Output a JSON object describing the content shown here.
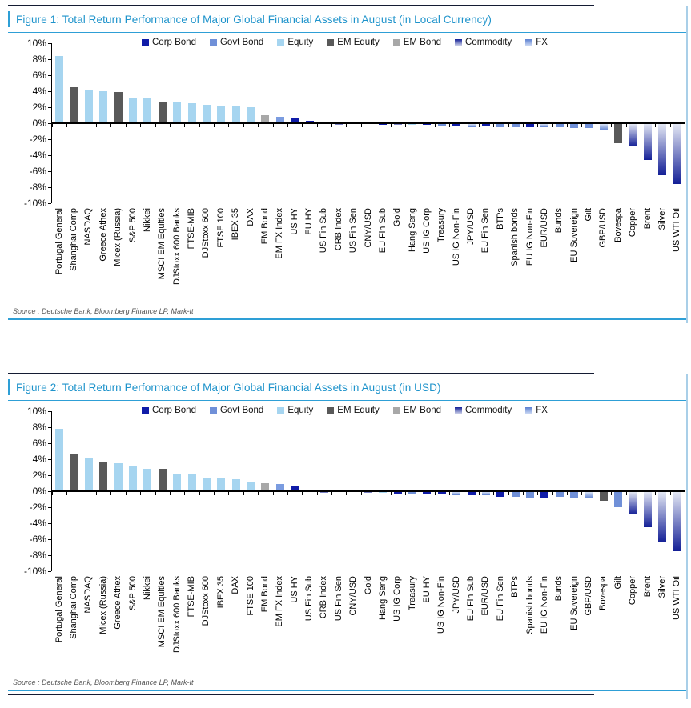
{
  "colors": {
    "title_blue": "#1e93cb",
    "rule_blue": "#2e9fd6",
    "right_border_blue": "#a9cfe8",
    "top_rule_navy": "#141b33",
    "corp_bond": "#101ca8",
    "govt_bond": "#7090d8",
    "equity": "#a6d5f0",
    "em_equity": "#595959",
    "em_bond": "#a8a8a8",
    "commodity_dark": "#131f96",
    "commodity_light": "#e4e8f4",
    "fx_dark": "#5b7fd0",
    "fx_light": "#d9e4f8",
    "fx_positive": "#7b9ce0",
    "axis_black": "#000000",
    "source_gray": "#555555"
  },
  "legend": [
    {
      "label": "Corp Bond",
      "class": "corp_bond"
    },
    {
      "label": "Govt Bond",
      "class": "govt_bond"
    },
    {
      "label": "Equity",
      "class": "equity"
    },
    {
      "label": "EM Equity",
      "class": "em_equity"
    },
    {
      "label": "EM Bond",
      "class": "em_bond"
    },
    {
      "label": "Commodity",
      "class": "commodity"
    },
    {
      "label": "FX",
      "class": "fx"
    }
  ],
  "chart_data": [
    {
      "type": "bar",
      "title": "Figure 1: Total Return Performance of Major Global Financial Assets in August (in Local Currency)",
      "source": "Source : Deutsche Bank, Bloomberg Finance LP, Mark-It",
      "xlabel": "",
      "ylabel": "",
      "ylim": [
        -10,
        10
      ],
      "ytick_step": 2,
      "ytick_labels": [
        "10%",
        "8%",
        "6%",
        "4%",
        "2%",
        "0%",
        "-2%",
        "-4%",
        "-6%",
        "-8%",
        "-10%"
      ],
      "grid": false,
      "legend_position": "top",
      "categories": [
        "Portugal General",
        "Shanghai Comp",
        "NASDAQ",
        "Greece Athex",
        "Micex (Russia)",
        "S&P 500",
        "Nikkei",
        "MSCI EM Equities",
        "DJStoxx 600 Banks",
        "FTSE-MIB",
        "DJStoxx 600",
        "FTSE 100",
        "IBEX 35",
        "DAX",
        "EM Bond",
        "EM FX Index",
        "US HY",
        "EU HY",
        "US Fin Sub",
        "CRB Index",
        "US Fin Sen",
        "CNY/USD",
        "EU Fin Sub",
        "Gold",
        "Hang Seng",
        "US IG Corp",
        "Treasury",
        "US IG Non-Fin",
        "JPY/USD",
        "EU Fin Sen",
        "BTPs",
        "Spanish bonds",
        "EU IG Non-Fin",
        "EUR/USD",
        "Bunds",
        "EU Sovereign",
        "Gilt",
        "GBP/USD",
        "Bovespa",
        "Copper",
        "Brent",
        "Silver",
        "US WTI Oil"
      ],
      "values": [
        8.3,
        4.45,
        4.05,
        3.95,
        3.85,
        3.05,
        3.05,
        2.6,
        2.5,
        2.45,
        2.2,
        2.1,
        2.0,
        1.9,
        0.95,
        0.75,
        0.6,
        0.25,
        0.05,
        -0.05,
        0.05,
        0.0,
        -0.05,
        -0.05,
        -0.05,
        -0.1,
        -0.15,
        -0.2,
        -0.35,
        -0.3,
        -0.35,
        -0.4,
        -0.35,
        -0.4,
        -0.4,
        -0.45,
        -0.5,
        -0.75,
        -2.4,
        -2.8,
        -4.45,
        -6.4,
        -7.5
      ],
      "asset_classes": [
        "equity",
        "em_equity",
        "equity",
        "equity",
        "em_equity",
        "equity",
        "equity",
        "em_equity",
        "equity",
        "equity",
        "equity",
        "equity",
        "equity",
        "equity",
        "em_bond",
        "fx",
        "corp_bond",
        "corp_bond",
        "corp_bond",
        "commodity",
        "corp_bond",
        "fx",
        "corp_bond",
        "commodity",
        "equity",
        "corp_bond",
        "govt_bond",
        "corp_bond",
        "fx",
        "corp_bond",
        "govt_bond",
        "govt_bond",
        "corp_bond",
        "fx",
        "govt_bond",
        "govt_bond",
        "govt_bond",
        "fx",
        "em_equity",
        "commodity",
        "commodity",
        "commodity",
        "commodity"
      ]
    },
    {
      "type": "bar",
      "title": "Figure 2: Total Return Performance of Major Global Financial Assets in August (in USD)",
      "source": "Source : Deutsche Bank, Bloomberg Finance LP, Mark-It",
      "xlabel": "",
      "ylabel": "",
      "ylim": [
        -10,
        10
      ],
      "ytick_step": 2,
      "ytick_labels": [
        "10%",
        "8%",
        "6%",
        "4%",
        "2%",
        "0%",
        "-2%",
        "-4%",
        "-6%",
        "-8%",
        "-10%"
      ],
      "grid": false,
      "legend_position": "top",
      "categories": [
        "Portugal General",
        "Shanghai Comp",
        "NASDAQ",
        "Micex (Russia)",
        "Greece Athex",
        "S&P 500",
        "Nikkei",
        "MSCI EM Equities",
        "DJStoxx 600 Banks",
        "FTSE-MIB",
        "DJStoxx 600",
        "IBEX 35",
        "DAX",
        "FTSE 100",
        "EM Bond",
        "EM FX Index",
        "US HY",
        "US Fin Sub",
        "CRB Index",
        "US Fin Sen",
        "CNY/USD",
        "Gold",
        "Hang Seng",
        "US IG Corp",
        "Treasury",
        "EU HY",
        "US IG Non-Fin",
        "JPY/USD",
        "EU Fin Sub",
        "EUR/USD",
        "EU Fin Sen",
        "BTPs",
        "Spanish bonds",
        "EU IG Non-Fin",
        "Bunds",
        "EU Sovereign",
        "GBP/USD",
        "Bovespa",
        "Gilt",
        "Copper",
        "Brent",
        "Silver",
        "US WTI Oil"
      ],
      "values": [
        7.7,
        4.5,
        4.15,
        3.55,
        3.45,
        3.05,
        2.7,
        2.7,
        2.1,
        2.1,
        1.65,
        1.5,
        1.45,
        1.0,
        0.95,
        0.8,
        0.65,
        0.05,
        -0.05,
        0.05,
        0.0,
        -0.1,
        -0.1,
        -0.15,
        -0.15,
        -0.3,
        -0.2,
        -0.35,
        -0.35,
        -0.4,
        -0.6,
        -0.6,
        -0.65,
        -0.7,
        -0.6,
        -0.65,
        -0.75,
        -1.1,
        -1.9,
        -2.8,
        -4.4,
        -6.3,
        -7.4
      ],
      "asset_classes": [
        "equity",
        "em_equity",
        "equity",
        "em_equity",
        "equity",
        "equity",
        "equity",
        "em_equity",
        "equity",
        "equity",
        "equity",
        "equity",
        "equity",
        "equity",
        "em_bond",
        "fx",
        "corp_bond",
        "corp_bond",
        "commodity",
        "corp_bond",
        "fx",
        "commodity",
        "equity",
        "corp_bond",
        "govt_bond",
        "corp_bond",
        "corp_bond",
        "fx",
        "corp_bond",
        "fx",
        "corp_bond",
        "govt_bond",
        "govt_bond",
        "corp_bond",
        "govt_bond",
        "govt_bond",
        "fx",
        "em_equity",
        "govt_bond",
        "commodity",
        "commodity",
        "commodity",
        "commodity"
      ]
    }
  ]
}
